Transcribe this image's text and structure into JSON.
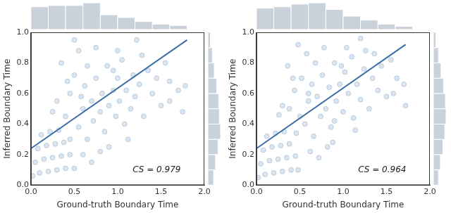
{
  "chart_data": [
    {
      "type": "scatter",
      "x_label": "Ground-truth Boundary Time",
      "y_label": "Inferred Boundary Time",
      "xlim": [
        0,
        2
      ],
      "ylim": [
        0,
        1
      ],
      "xticks": [
        {
          "value": 0,
          "label": "0.0"
        },
        {
          "value": 0.5,
          "label": "0.5"
        },
        {
          "value": 1,
          "label": "1.0"
        },
        {
          "value": 1.5,
          "label": "1.5"
        },
        {
          "value": 2,
          "label": "2.0"
        }
      ],
      "yticks": [
        {
          "value": 0,
          "label": "0.0"
        },
        {
          "value": 0.2,
          "label": "0.2"
        },
        {
          "value": 0.4,
          "label": "0.4"
        },
        {
          "value": 0.6,
          "label": "0.6"
        },
        {
          "value": 0.8,
          "label": "0.8"
        },
        {
          "value": 1,
          "label": "1.0"
        }
      ],
      "grid": false,
      "series": [
        {
          "type": "scatter",
          "color": "#4a7bb0",
          "x": [
            0.02,
            0.1,
            0.2,
            0.3,
            0.4,
            0.5,
            0.05,
            0.15,
            0.25,
            0.35,
            0.45,
            0.08,
            0.18,
            0.28,
            0.38,
            0.12,
            0.22,
            0.32,
            0.4,
            0.45,
            0.5,
            0.55,
            0.6,
            0.62,
            0.65,
            0.7,
            0.72,
            0.75,
            0.8,
            0.82,
            0.85,
            0.88,
            0.9,
            0.95,
            0.98,
            1.0,
            1.02,
            1.05,
            1.08,
            1.1,
            1.15,
            1.18,
            1.2,
            1.25,
            1.3,
            1.35,
            1.4,
            1.45,
            1.5,
            1.55,
            1.6,
            1.7,
            1.78,
            0.3,
            0.35,
            0.5,
            0.55,
            0.6,
            0.7,
            0.75,
            0.9,
            1.0,
            0.25,
            0.45,
            0.65,
            1.12,
            1.28,
            0.42,
            0.58,
            0.8,
            0.95,
            1.22,
            1.6,
            1.75
          ],
          "values": [
            0.06,
            0.08,
            0.09,
            0.1,
            0.11,
            0.11,
            0.15,
            0.17,
            0.18,
            0.19,
            0.2,
            0.24,
            0.26,
            0.27,
            0.28,
            0.33,
            0.35,
            0.36,
            0.45,
            0.6,
            0.72,
            0.38,
            0.5,
            0.65,
            0.3,
            0.55,
            0.42,
            0.7,
            0.48,
            0.6,
            0.35,
            0.78,
            0.52,
            0.62,
            0.45,
            0.7,
            0.55,
            0.82,
            0.4,
            0.62,
            0.5,
            0.72,
            0.58,
            0.66,
            0.45,
            0.75,
            0.6,
            0.7,
            0.52,
            0.8,
            0.68,
            0.62,
            0.65,
            0.55,
            0.8,
            0.95,
            0.88,
            0.2,
            0.15,
            0.9,
            0.25,
            0.88,
            0.48,
            0.3,
            0.78,
            0.3,
            0.85,
            0.68,
            0.58,
            0.22,
            0.75,
            0.95,
            0.55,
            0.48
          ]
        },
        {
          "type": "line",
          "color": "#3a6ea5",
          "x": [
            0,
            1.8
          ],
          "values": [
            0.24,
            0.95
          ]
        }
      ],
      "annotations": [
        {
          "text": "CS = 0.979",
          "x": 1.45,
          "y": 0.1
        }
      ],
      "x_histogram": {
        "bins": [
          0,
          0.2,
          0.4,
          0.6,
          0.8,
          1.0,
          1.2,
          1.4,
          1.6,
          1.8
        ],
        "counts": [
          0.85,
          0.9,
          0.9,
          1.0,
          0.55,
          0.45,
          0.3,
          0.2,
          0.15
        ]
      },
      "y_histogram": {
        "bins": [
          0,
          0.1,
          0.2,
          0.3,
          0.4,
          0.5,
          0.6,
          0.7,
          0.8,
          0.9,
          1.0
        ],
        "counts": [
          0.45,
          0.6,
          0.8,
          1.0,
          0.9,
          0.85,
          0.7,
          0.5,
          0.35,
          0.2
        ]
      }
    },
    {
      "type": "scatter",
      "x_label": "Ground-truth Boundary Time",
      "y_label": "Inferred Boundary Time",
      "xlim": [
        0,
        2
      ],
      "ylim": [
        0,
        1
      ],
      "xticks": [
        {
          "value": 0,
          "label": "0.0"
        },
        {
          "value": 0.5,
          "label": "0.5"
        },
        {
          "value": 1,
          "label": "1.0"
        },
        {
          "value": 1.5,
          "label": "1.5"
        },
        {
          "value": 2,
          "label": "2.0"
        }
      ],
      "yticks": [
        {
          "value": 0,
          "label": "0.0"
        },
        {
          "value": 0.2,
          "label": "0.2"
        },
        {
          "value": 0.4,
          "label": "0.4"
        },
        {
          "value": 0.6,
          "label": "0.6"
        },
        {
          "value": 0.8,
          "label": "0.8"
        },
        {
          "value": 1,
          "label": "1.0"
        }
      ],
      "grid": false,
      "series": [
        {
          "type": "scatter",
          "color": "#4a7bb0",
          "x": [
            0.02,
            0.1,
            0.2,
            0.3,
            0.4,
            0.48,
            0.05,
            0.15,
            0.25,
            0.35,
            0.45,
            0.08,
            0.18,
            0.28,
            0.38,
            0.12,
            0.22,
            0.32,
            0.38,
            0.44,
            0.52,
            0.56,
            0.6,
            0.64,
            0.66,
            0.7,
            0.74,
            0.76,
            0.8,
            0.84,
            0.86,
            0.9,
            0.92,
            0.96,
            1.0,
            1.02,
            1.06,
            1.1,
            1.12,
            1.16,
            1.2,
            1.24,
            1.3,
            1.34,
            1.4,
            1.44,
            1.5,
            1.55,
            1.62,
            1.7,
            0.3,
            0.36,
            0.48,
            0.58,
            0.62,
            0.72,
            0.78,
            0.88,
            1.04,
            0.26,
            0.46,
            0.68,
            1.14,
            1.26,
            0.42,
            0.6,
            0.82,
            0.98,
            1.2,
            1.58,
            1.72,
            0.5,
            0.9,
            1.36
          ],
          "values": [
            0.05,
            0.07,
            0.08,
            0.09,
            0.1,
            0.1,
            0.14,
            0.16,
            0.17,
            0.18,
            0.19,
            0.23,
            0.25,
            0.26,
            0.27,
            0.32,
            0.34,
            0.35,
            0.5,
            0.62,
            0.7,
            0.4,
            0.55,
            0.66,
            0.32,
            0.58,
            0.45,
            0.72,
            0.5,
            0.64,
            0.38,
            0.8,
            0.55,
            0.66,
            0.48,
            0.74,
            0.6,
            0.84,
            0.44,
            0.66,
            0.56,
            0.76,
            0.5,
            0.7,
            0.62,
            0.78,
            0.58,
            0.82,
            0.7,
            0.66,
            0.52,
            0.78,
            0.92,
            0.86,
            0.22,
            0.18,
            0.9,
            0.28,
            0.9,
            0.46,
            0.34,
            0.8,
            0.36,
            0.88,
            0.7,
            0.6,
            0.25,
            0.78,
            0.96,
            0.6,
            0.52,
            0.45,
            0.42,
            0.86
          ]
        },
        {
          "type": "line",
          "color": "#3a6ea5",
          "x": [
            0,
            1.72
          ],
          "values": [
            0.24,
            0.92
          ]
        }
      ],
      "annotations": [
        {
          "text": "CS = 0.964",
          "x": 1.45,
          "y": 0.1
        }
      ],
      "x_histogram": {
        "bins": [
          0,
          0.2,
          0.4,
          0.6,
          0.8,
          1.0,
          1.2,
          1.4,
          1.6,
          1.8
        ],
        "counts": [
          0.8,
          0.85,
          0.95,
          1.0,
          0.75,
          0.5,
          0.35,
          0.2,
          0.12
        ]
      },
      "y_histogram": {
        "bins": [
          0,
          0.1,
          0.2,
          0.3,
          0.4,
          0.5,
          0.6,
          0.7,
          0.8,
          0.9,
          1.0
        ],
        "counts": [
          0.4,
          0.55,
          0.75,
          0.9,
          1.0,
          0.95,
          0.8,
          0.6,
          0.4,
          0.2
        ]
      }
    }
  ]
}
